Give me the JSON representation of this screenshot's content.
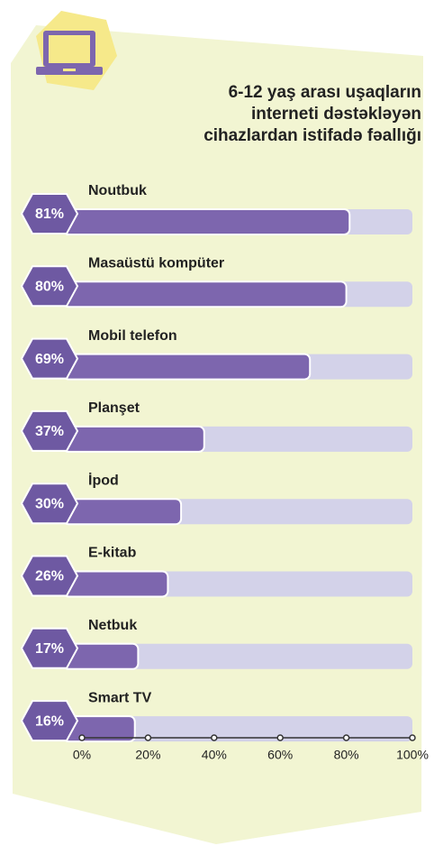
{
  "chart_data": {
    "type": "bar",
    "orientation": "horizontal",
    "title": [
      "6-12 yaş arası uşaqların",
      "interneti dəstəkləyən",
      "cihazlardan istifadə fəallığı"
    ],
    "categories": [
      "Noutbuk",
      "Masaüstü kompüter",
      "Mobil telefon",
      "Planşet",
      "İpod",
      "E-kitab",
      "Netbuk",
      "Smart TV"
    ],
    "values": [
      81,
      80,
      69,
      37,
      30,
      26,
      17,
      16
    ],
    "value_labels": [
      "81%",
      "80%",
      "69%",
      "37%",
      "30%",
      "26%",
      "17%",
      "16%"
    ],
    "color": "#7d66ae",
    "track_color": "#d3d2e9",
    "xlim": [
      0,
      100
    ],
    "xticks": [
      {
        "value": 0,
        "label": "0%"
      },
      {
        "value": 20,
        "label": "20%"
      },
      {
        "value": 40,
        "label": "40%"
      },
      {
        "value": 60,
        "label": "60%"
      },
      {
        "value": 80,
        "label": "80%"
      },
      {
        "value": 100,
        "label": "100%"
      }
    ]
  }
}
